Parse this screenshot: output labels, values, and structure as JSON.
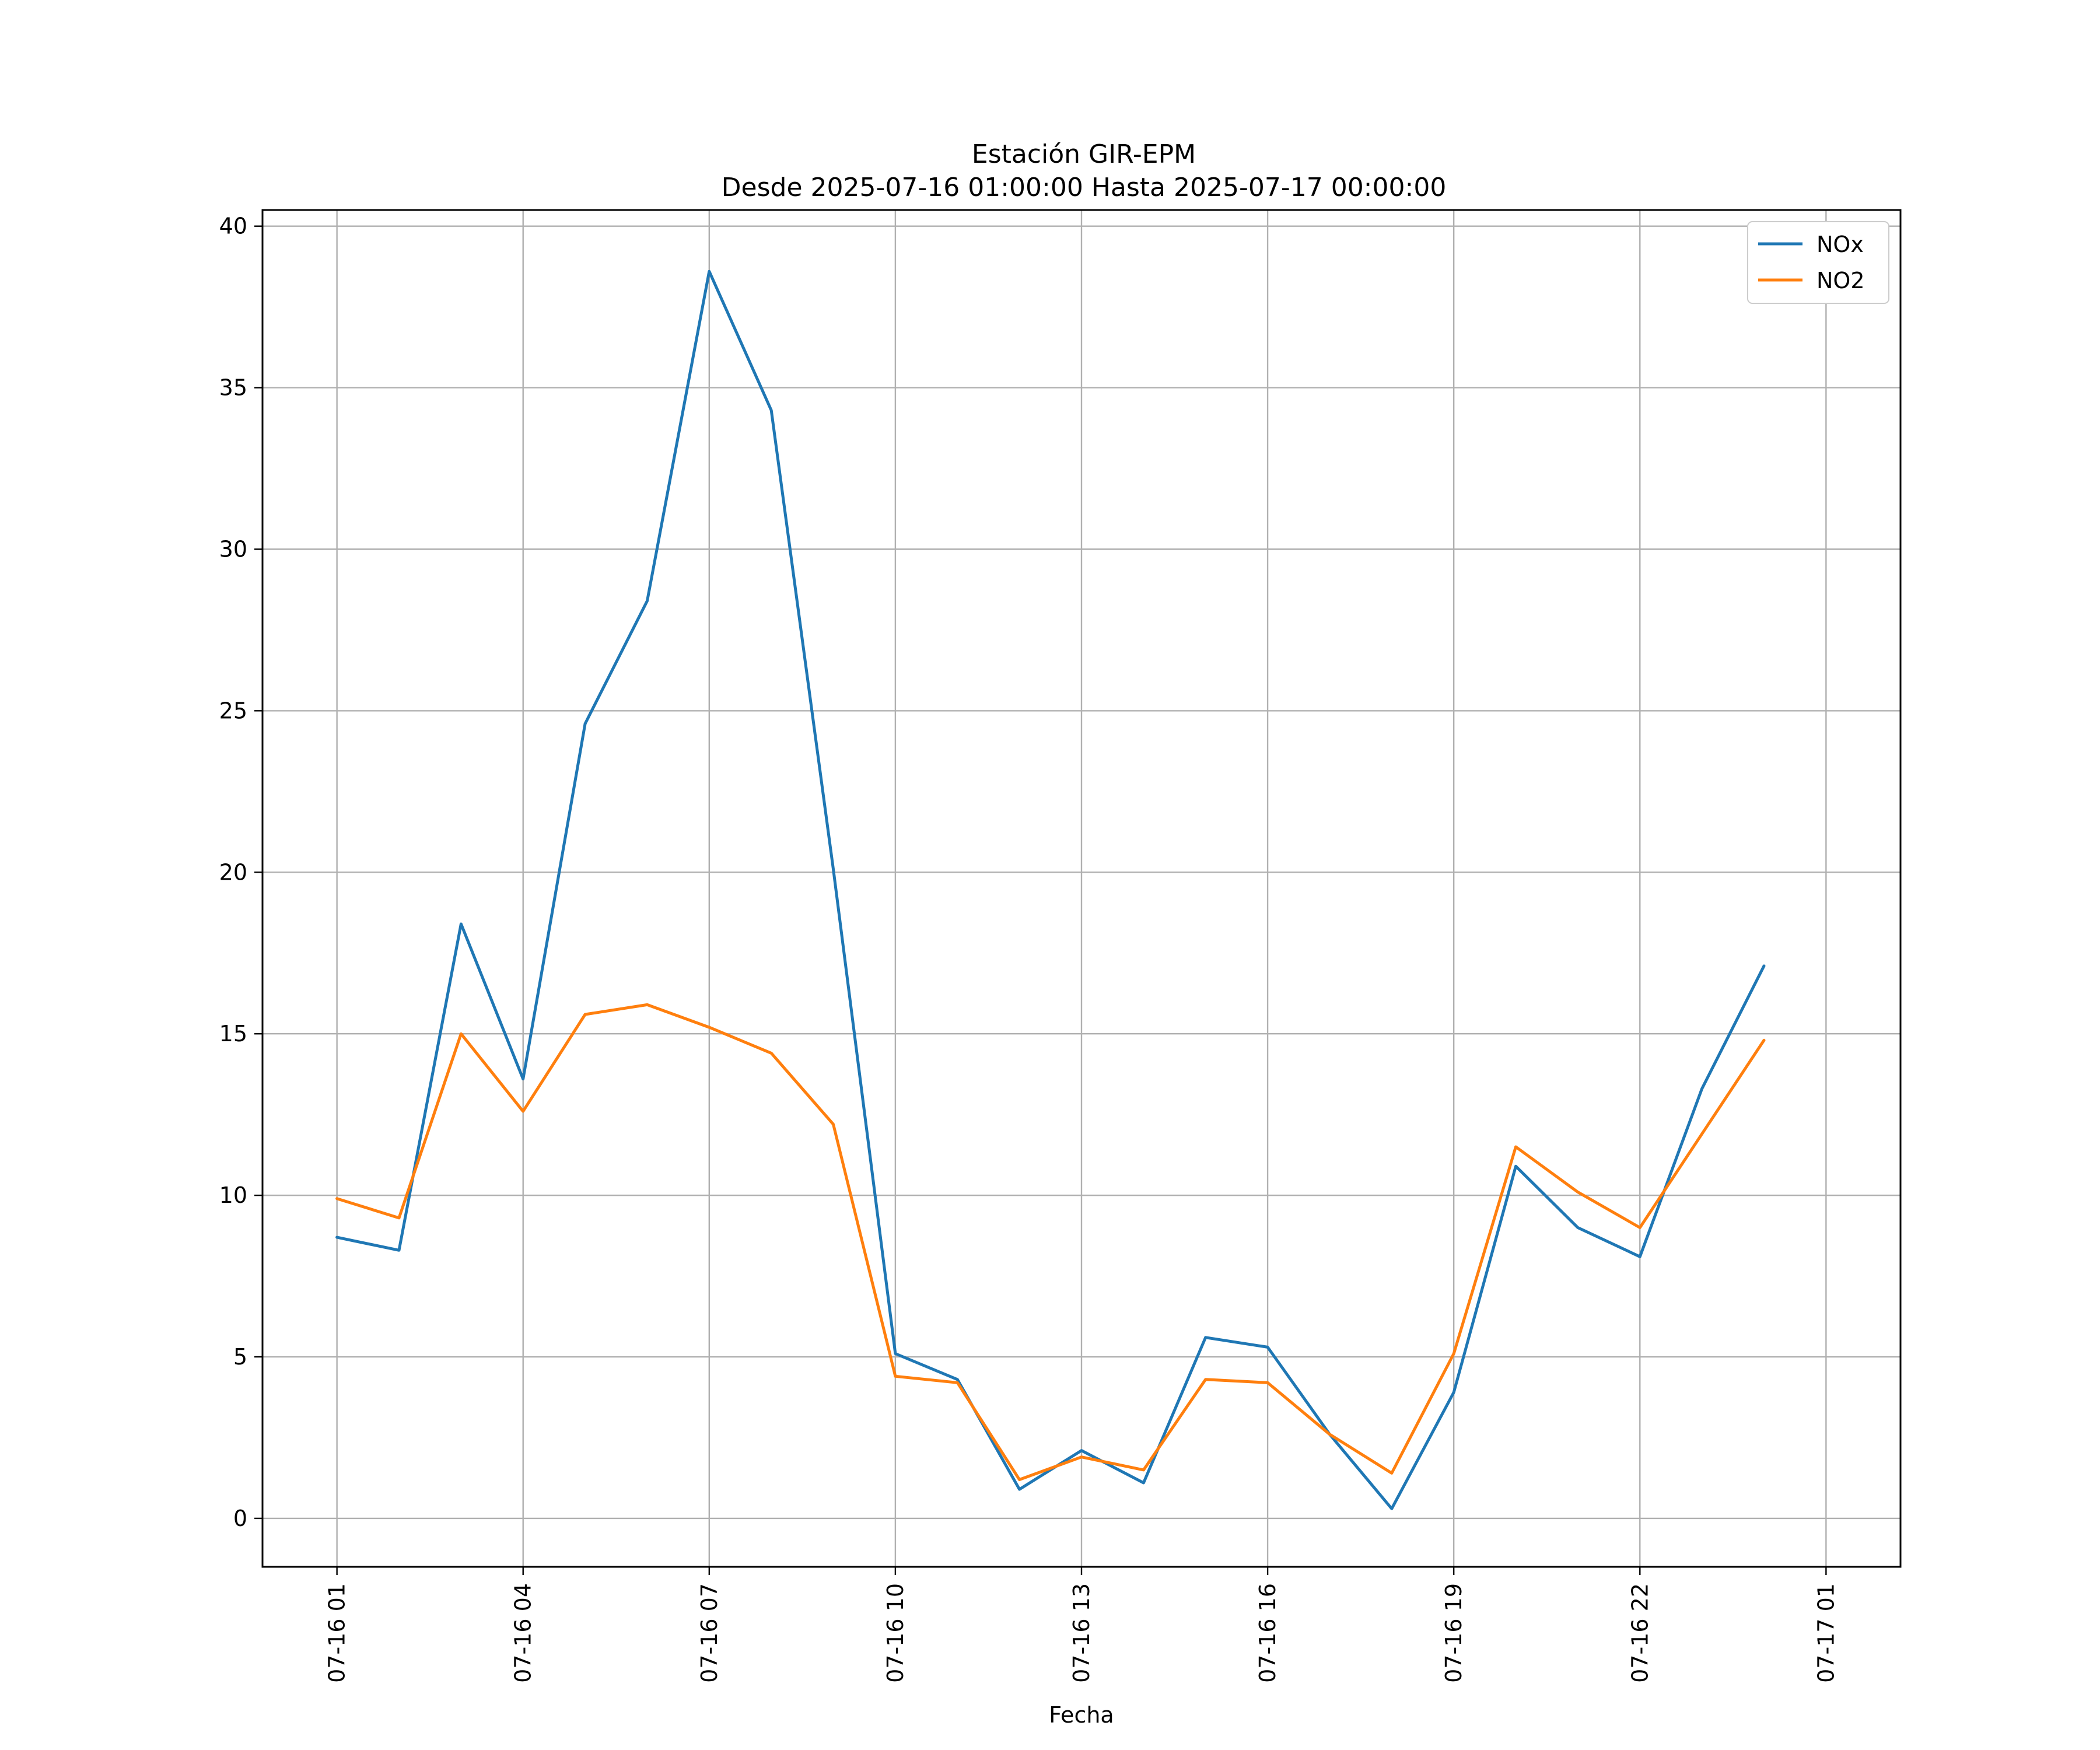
{
  "chart_data": {
    "type": "line",
    "title": "Estación GIR-EPM",
    "subtitle": "Desde 2025-07-16 01:00:00 Hasta 2025-07-17 00:00:00",
    "xlabel": "Fecha",
    "ylabel": "",
    "x": [
      "2025-07-16 01:00",
      "2025-07-16 02:00",
      "2025-07-16 03:00",
      "2025-07-16 04:00",
      "2025-07-16 05:00",
      "2025-07-16 06:00",
      "2025-07-16 07:00",
      "2025-07-16 08:00",
      "2025-07-16 09:00",
      "2025-07-16 10:00",
      "2025-07-16 11:00",
      "2025-07-16 12:00",
      "2025-07-16 13:00",
      "2025-07-16 14:00",
      "2025-07-16 15:00",
      "2025-07-16 16:00",
      "2025-07-16 17:00",
      "2025-07-16 18:00",
      "2025-07-16 19:00",
      "2025-07-16 20:00",
      "2025-07-16 21:00",
      "2025-07-16 22:00",
      "2025-07-16 23:00",
      "2025-07-17 00:00"
    ],
    "series": [
      {
        "name": "NOx",
        "color": "#1f77b4",
        "values": [
          8.7,
          8.3,
          18.4,
          13.6,
          24.6,
          28.4,
          38.6,
          34.3,
          20.1,
          5.1,
          4.3,
          0.9,
          2.1,
          1.1,
          5.6,
          5.3,
          2.6,
          0.3,
          3.9,
          10.9,
          9.0,
          8.1,
          13.3,
          17.1
        ]
      },
      {
        "name": "NO2",
        "color": "#ff7f0e",
        "values": [
          9.9,
          9.3,
          15.0,
          12.6,
          15.6,
          15.9,
          15.2,
          14.4,
          12.2,
          4.4,
          4.2,
          1.2,
          1.9,
          1.5,
          4.3,
          4.2,
          2.6,
          1.4,
          5.1,
          11.5,
          10.1,
          9.0,
          11.9,
          14.8
        ]
      }
    ],
    "xticks": [
      "07-16 01",
      "07-16 04",
      "07-16 07",
      "07-16 10",
      "07-16 13",
      "07-16 16",
      "07-16 19",
      "07-16 22",
      "07-17 01"
    ],
    "xlim": [
      "2025-07-16 01:00",
      "2025-07-17 01:00"
    ],
    "yticks": [
      0,
      5,
      10,
      15,
      20,
      25,
      30,
      35,
      40
    ],
    "ylim": [
      -1.5,
      40.5
    ],
    "grid": true,
    "legend": "top-right"
  }
}
